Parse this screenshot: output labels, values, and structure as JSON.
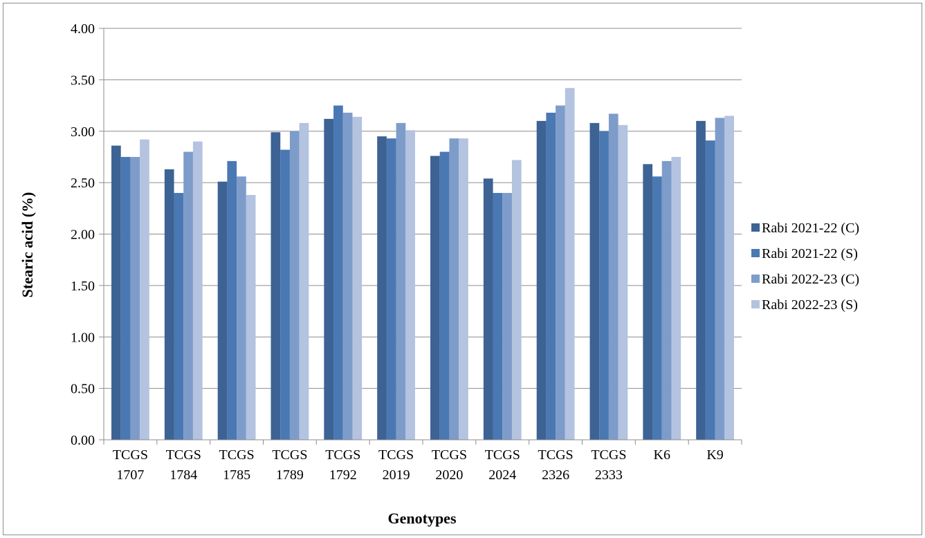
{
  "chart_data": {
    "type": "bar",
    "title": "",
    "xlabel": "Genotypes",
    "ylabel": "Stearic acid (%)",
    "ylim": [
      0,
      4
    ],
    "yticks": [
      "0.00",
      "0.50",
      "1.00",
      "1.50",
      "2.00",
      "2.50",
      "3.00",
      "3.50",
      "4.00"
    ],
    "grid": "horizontal",
    "legend_position": "right",
    "categories": [
      [
        "TCGS",
        "1707"
      ],
      [
        "TCGS",
        "1784"
      ],
      [
        "TCGS",
        "1785"
      ],
      [
        "TCGS",
        "1789"
      ],
      [
        "TCGS",
        "1792"
      ],
      [
        "TCGS",
        "2019"
      ],
      [
        "TCGS",
        "2020"
      ],
      [
        "TCGS",
        "2024"
      ],
      [
        "TCGS",
        "2326"
      ],
      [
        "TCGS",
        "2333"
      ],
      [
        "K6"
      ],
      [
        "K9"
      ]
    ],
    "series": [
      {
        "name": "Rabi 2021-22 (C)",
        "color": "#3d6294",
        "values": [
          2.86,
          2.63,
          2.51,
          2.99,
          3.12,
          2.95,
          2.76,
          2.54,
          3.1,
          3.08,
          2.68,
          3.1
        ]
      },
      {
        "name": "Rabi 2021-22 (S)",
        "color": "#4a78b3",
        "values": [
          2.75,
          2.4,
          2.71,
          2.82,
          3.25,
          2.93,
          2.8,
          2.4,
          3.18,
          3.0,
          2.56,
          2.91
        ]
      },
      {
        "name": "Rabi 2022-23 (C)",
        "color": "#7e9cca",
        "values": [
          2.75,
          2.8,
          2.56,
          3.0,
          3.18,
          3.08,
          2.93,
          2.4,
          3.25,
          3.17,
          2.71,
          3.13
        ]
      },
      {
        "name": "Rabi 2022-23 (S)",
        "color": "#b3c3e0",
        "values": [
          2.92,
          2.9,
          2.38,
          3.08,
          3.14,
          3.01,
          2.93,
          2.72,
          3.42,
          3.06,
          2.75,
          3.15
        ]
      }
    ]
  }
}
